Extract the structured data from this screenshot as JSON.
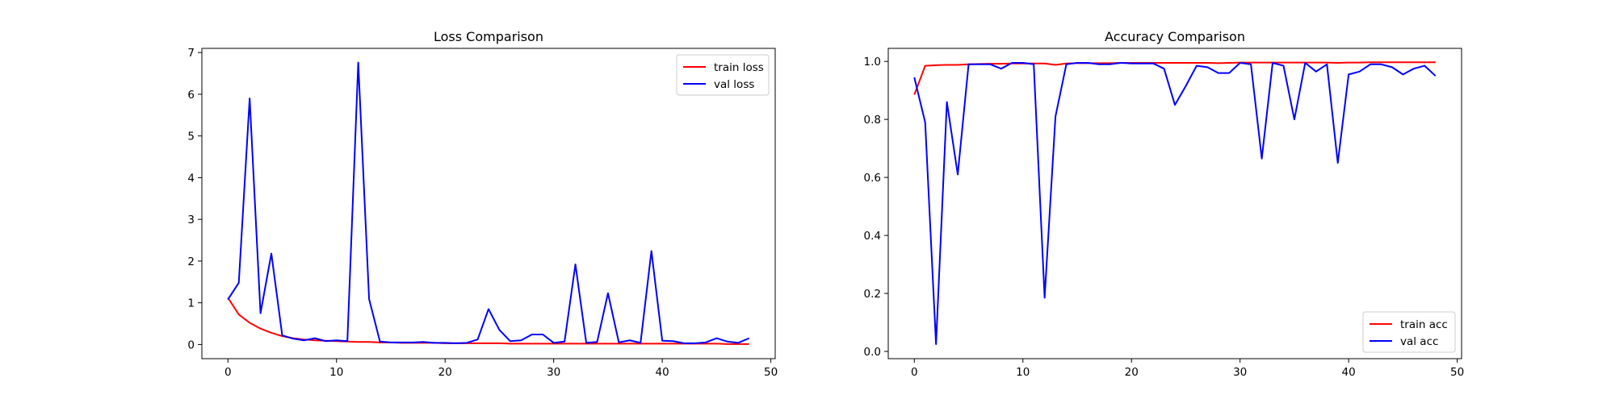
{
  "chart_data": [
    {
      "type": "line",
      "title": "Loss Comparison",
      "xlabel": "",
      "ylabel": "",
      "xlim": [
        -2.4,
        50.4
      ],
      "ylim": [
        -0.34,
        7.1
      ],
      "xticks": [
        0,
        10,
        20,
        30,
        40,
        50
      ],
      "yticks": [
        0,
        1,
        2,
        3,
        4,
        5,
        6,
        7
      ],
      "legend": "top-right",
      "x": [
        0,
        1,
        2,
        3,
        4,
        5,
        6,
        7,
        8,
        9,
        10,
        11,
        12,
        13,
        14,
        15,
        16,
        17,
        18,
        19,
        20,
        21,
        22,
        23,
        24,
        25,
        26,
        27,
        28,
        29,
        30,
        31,
        32,
        33,
        34,
        35,
        36,
        37,
        38,
        39,
        40,
        41,
        42,
        43,
        44,
        45,
        46,
        47,
        48
      ],
      "series": [
        {
          "name": "train loss",
          "color": "#ff0000",
          "values": [
            1.12,
            0.72,
            0.52,
            0.38,
            0.28,
            0.2,
            0.15,
            0.12,
            0.1,
            0.09,
            0.08,
            0.07,
            0.06,
            0.06,
            0.05,
            0.05,
            0.04,
            0.04,
            0.04,
            0.04,
            0.03,
            0.03,
            0.03,
            0.03,
            0.03,
            0.03,
            0.02,
            0.02,
            0.02,
            0.02,
            0.02,
            0.02,
            0.02,
            0.02,
            0.02,
            0.02,
            0.02,
            0.02,
            0.02,
            0.02,
            0.02,
            0.02,
            0.02,
            0.02,
            0.02,
            0.02,
            0.01,
            0.01,
            0.01
          ]
        },
        {
          "name": "val loss",
          "color": "#0000ff",
          "values": [
            1.08,
            1.48,
            5.9,
            0.75,
            2.18,
            0.22,
            0.14,
            0.1,
            0.15,
            0.08,
            0.1,
            0.08,
            6.76,
            1.09,
            0.07,
            0.05,
            0.05,
            0.05,
            0.06,
            0.04,
            0.04,
            0.03,
            0.04,
            0.12,
            0.85,
            0.35,
            0.08,
            0.1,
            0.24,
            0.24,
            0.04,
            0.07,
            1.92,
            0.04,
            0.06,
            1.23,
            0.05,
            0.1,
            0.04,
            2.24,
            0.09,
            0.08,
            0.03,
            0.03,
            0.05,
            0.15,
            0.07,
            0.04,
            0.15
          ]
        }
      ]
    },
    {
      "type": "line",
      "title": "Accuracy Comparison",
      "xlabel": "",
      "ylabel": "",
      "xlim": [
        -2.4,
        50.4
      ],
      "ylim": [
        -0.025,
        1.045
      ],
      "xticks": [
        0,
        10,
        20,
        30,
        40,
        50
      ],
      "yticks": [
        "0.0",
        "0.2",
        "0.4",
        "0.6",
        "0.8",
        "1.0"
      ],
      "legend": "bottom-right",
      "x": [
        0,
        1,
        2,
        3,
        4,
        5,
        6,
        7,
        8,
        9,
        10,
        11,
        12,
        13,
        14,
        15,
        16,
        17,
        18,
        19,
        20,
        21,
        22,
        23,
        24,
        25,
        26,
        27,
        28,
        29,
        30,
        31,
        32,
        33,
        34,
        35,
        36,
        37,
        38,
        39,
        40,
        41,
        42,
        43,
        44,
        45,
        46,
        47,
        48
      ],
      "series": [
        {
          "name": "train acc",
          "color": "#ff0000",
          "values": [
            0.885,
            0.985,
            0.987,
            0.988,
            0.988,
            0.99,
            0.991,
            0.992,
            0.992,
            0.993,
            0.993,
            0.993,
            0.993,
            0.988,
            0.993,
            0.994,
            0.994,
            0.994,
            0.994,
            0.995,
            0.995,
            0.995,
            0.995,
            0.995,
            0.995,
            0.995,
            0.995,
            0.995,
            0.994,
            0.995,
            0.996,
            0.996,
            0.996,
            0.996,
            0.996,
            0.996,
            0.996,
            0.996,
            0.996,
            0.995,
            0.996,
            0.996,
            0.997,
            0.997,
            0.997,
            0.997,
            0.997,
            0.997,
            0.997
          ]
        },
        {
          "name": "val acc",
          "color": "#0000ff",
          "values": [
            0.945,
            0.79,
            0.025,
            0.86,
            0.61,
            0.99,
            0.99,
            0.99,
            0.975,
            0.995,
            0.995,
            0.99,
            0.185,
            0.81,
            0.99,
            0.995,
            0.995,
            0.99,
            0.99,
            0.995,
            0.993,
            0.993,
            0.993,
            0.975,
            0.85,
            0.915,
            0.985,
            0.98,
            0.96,
            0.96,
            0.995,
            0.99,
            0.665,
            0.995,
            0.985,
            0.8,
            0.995,
            0.965,
            0.99,
            0.65,
            0.955,
            0.965,
            0.99,
            0.99,
            0.98,
            0.955,
            0.975,
            0.985,
            0.95
          ]
        }
      ]
    }
  ]
}
